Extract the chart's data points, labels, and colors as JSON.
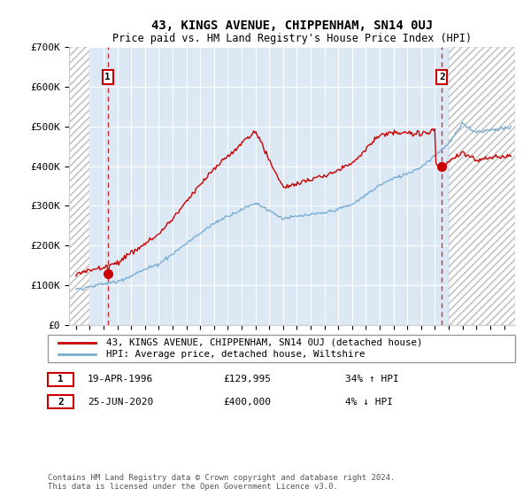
{
  "title": "43, KINGS AVENUE, CHIPPENHAM, SN14 0UJ",
  "subtitle": "Price paid vs. HM Land Registry's House Price Index (HPI)",
  "legend_line1": "43, KINGS AVENUE, CHIPPENHAM, SN14 0UJ (detached house)",
  "legend_line2": "HPI: Average price, detached house, Wiltshire",
  "point1_date": "19-APR-1996",
  "point1_price": "£129,995",
  "point1_hpi": "34% ↑ HPI",
  "point1_year": 1996.3,
  "point1_value": 129995,
  "point2_date": "25-JUN-2020",
  "point2_price": "£400,000",
  "point2_hpi": "4% ↓ HPI",
  "point2_year": 2020.5,
  "point2_value": 400000,
  "footer": "Contains HM Land Registry data © Crown copyright and database right 2024.\nThis data is licensed under the Open Government Licence v3.0.",
  "red_color": "#cc0000",
  "blue_color": "#7aadd4",
  "plot_bg": "#dce9f5",
  "ylim": [
    0,
    700000
  ],
  "xlim_left": 1993.5,
  "xlim_right": 2025.8,
  "hatch_left_end": 1995.0,
  "hatch_right_start": 2021.0
}
